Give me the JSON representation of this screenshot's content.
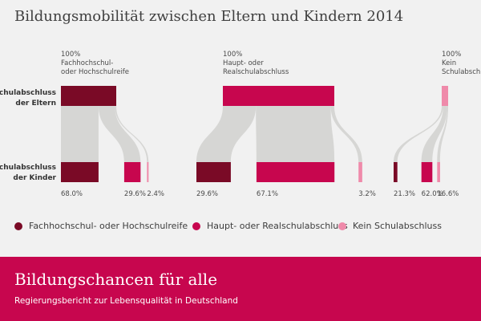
{
  "title": "Bildungsmobilität zwischen Eltern und Kindern 2014",
  "row_labels": {
    "parents": [
      "Schulabschluss",
      "der Eltern"
    ],
    "children": [
      "Schulabschluss",
      "der Kinder"
    ]
  },
  "legend": [
    {
      "label": "Fachhochschul- oder Hochschulreife",
      "color": "#7a0a26"
    },
    {
      "label": "Haupt- oder Realschulabschluss",
      "color": "#c7064e"
    },
    {
      "label": "Kein Schulabschluss",
      "color": "#ef8aaa"
    }
  ],
  "colors": {
    "flow": "#d6d6d4",
    "background": "#f1f1f1",
    "footer": "#c7064e"
  },
  "footer": {
    "title": "Bildungschancen für alle",
    "subtitle": "Regierungsbericht zur Lebensqualität in Deutschland"
  },
  "chart_data": {
    "type": "sankey",
    "title": "Bildungsmobilität zwischen Eltern und Kindern 2014",
    "categories": [
      "Fachhochschul- oder Hochschulreife",
      "Haupt- oder Realschulabschluss",
      "Kein Schulabschluss"
    ],
    "groups": [
      {
        "parent_label": [
          "100%",
          "Fachhochschul-",
          "oder Hochschulreife"
        ],
        "parent_value": 100,
        "children": [
          {
            "category": "Fachhochschul- oder Hochschulreife",
            "value": 68.0,
            "label": "68.0%"
          },
          {
            "category": "Haupt- oder Realschulabschluss",
            "value": 29.6,
            "label": "29.6%"
          },
          {
            "category": "Kein Schulabschluss",
            "value": 2.4,
            "label": "2.4%"
          }
        ]
      },
      {
        "parent_label": [
          "100%",
          "Haupt- oder",
          "Realschulabschluss"
        ],
        "parent_value": 100,
        "children": [
          {
            "category": "Fachhochschul- oder Hochschulreife",
            "value": 29.6,
            "label": "29.6%"
          },
          {
            "category": "Haupt- oder Realschulabschluss",
            "value": 67.1,
            "label": "67.1%"
          },
          {
            "category": "Kein Schulabschluss",
            "value": 3.2,
            "label": "3.2%"
          }
        ]
      },
      {
        "parent_label": [
          "100%",
          "Kein",
          "Schulabschluss"
        ],
        "parent_value": 100,
        "children": [
          {
            "category": "Fachhochschul- oder Hochschulreife",
            "value": 21.3,
            "label": "21.3%"
          },
          {
            "category": "Haupt- oder Realschulabschluss",
            "value": 62.0,
            "label": "62.0%"
          },
          {
            "category": "Kein Schulabschluss",
            "value": 16.6,
            "label": "16.6%"
          }
        ]
      }
    ]
  }
}
